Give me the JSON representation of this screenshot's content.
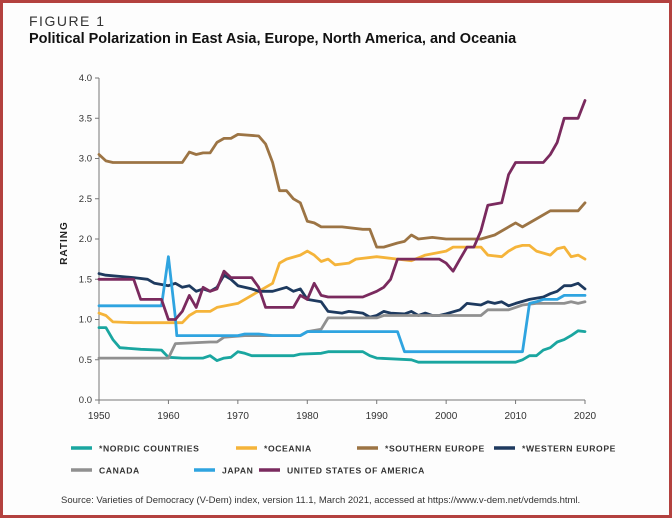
{
  "figure_label": "FIGURE 1",
  "source_text": "Source: Varieties of Democracy (V-Dem) index, version 11.1, March 2021, accessed at https://www.v-dem.net/vdemds.html.",
  "chart_data": {
    "type": "line",
    "title": "Political Polarization in East Asia, Europe, North America, and Oceania",
    "ylabel": "RATING",
    "xlabel": "",
    "xlim": [
      1950,
      2020
    ],
    "ylim": [
      0.0,
      4.0
    ],
    "xticks": [
      "1950",
      "1960",
      "1970",
      "1980",
      "1990",
      "2000",
      "2010",
      "2020"
    ],
    "yticks": [
      "0.0",
      "0.5",
      "1.0",
      "1.5",
      "2.0",
      "2.5",
      "3.0",
      "3.5",
      "4.0"
    ],
    "grid": false,
    "legend_position": "bottom",
    "series": [
      {
        "name": "*NORDIC COUNTRIES",
        "color": "#1aa6a0",
        "points": [
          [
            1950,
            0.9
          ],
          [
            1951,
            0.9
          ],
          [
            1952,
            0.75
          ],
          [
            1953,
            0.65
          ],
          [
            1956,
            0.63
          ],
          [
            1959,
            0.62
          ],
          [
            1960,
            0.53
          ],
          [
            1962,
            0.52
          ],
          [
            1965,
            0.52
          ],
          [
            1966,
            0.55
          ],
          [
            1967,
            0.49
          ],
          [
            1968,
            0.52
          ],
          [
            1969,
            0.53
          ],
          [
            1970,
            0.6
          ],
          [
            1971,
            0.58
          ],
          [
            1972,
            0.55
          ],
          [
            1978,
            0.55
          ],
          [
            1979,
            0.57
          ],
          [
            1982,
            0.58
          ],
          [
            1983,
            0.6
          ],
          [
            1988,
            0.6
          ],
          [
            1989,
            0.55
          ],
          [
            1990,
            0.52
          ],
          [
            1995,
            0.5
          ],
          [
            1996,
            0.47
          ],
          [
            2004,
            0.47
          ],
          [
            2008,
            0.47
          ],
          [
            2010,
            0.47
          ],
          [
            2011,
            0.5
          ],
          [
            2012,
            0.55
          ],
          [
            2013,
            0.55
          ],
          [
            2014,
            0.62
          ],
          [
            2015,
            0.65
          ],
          [
            2016,
            0.72
          ],
          [
            2017,
            0.75
          ],
          [
            2018,
            0.8
          ],
          [
            2019,
            0.86
          ],
          [
            2020,
            0.85
          ]
        ]
      },
      {
        "name": "*OCEANIA",
        "color": "#f5b43a",
        "points": [
          [
            1950,
            1.08
          ],
          [
            1951,
            1.05
          ],
          [
            1952,
            0.97
          ],
          [
            1955,
            0.96
          ],
          [
            1960,
            0.96
          ],
          [
            1962,
            0.96
          ],
          [
            1963,
            1.05
          ],
          [
            1964,
            1.1
          ],
          [
            1966,
            1.1
          ],
          [
            1967,
            1.15
          ],
          [
            1970,
            1.2
          ],
          [
            1971,
            1.25
          ],
          [
            1973,
            1.35
          ],
          [
            1975,
            1.45
          ],
          [
            1976,
            1.7
          ],
          [
            1977,
            1.75
          ],
          [
            1979,
            1.8
          ],
          [
            1980,
            1.85
          ],
          [
            1981,
            1.8
          ],
          [
            1982,
            1.72
          ],
          [
            1983,
            1.75
          ],
          [
            1984,
            1.68
          ],
          [
            1986,
            1.7
          ],
          [
            1987,
            1.75
          ],
          [
            1990,
            1.78
          ],
          [
            1993,
            1.75
          ],
          [
            1995,
            1.73
          ],
          [
            1997,
            1.8
          ],
          [
            2000,
            1.85
          ],
          [
            2001,
            1.9
          ],
          [
            2005,
            1.9
          ],
          [
            2006,
            1.8
          ],
          [
            2008,
            1.78
          ],
          [
            2009,
            1.85
          ],
          [
            2010,
            1.9
          ],
          [
            2011,
            1.92
          ],
          [
            2012,
            1.92
          ],
          [
            2013,
            1.85
          ],
          [
            2015,
            1.8
          ],
          [
            2016,
            1.88
          ],
          [
            2017,
            1.9
          ],
          [
            2018,
            1.78
          ],
          [
            2019,
            1.8
          ],
          [
            2020,
            1.75
          ]
        ]
      },
      {
        "name": "*SOUTHERN EUROPE",
        "color": "#9c7444",
        "points": [
          [
            1950,
            3.05
          ],
          [
            1951,
            2.97
          ],
          [
            1952,
            2.95
          ],
          [
            1956,
            2.95
          ],
          [
            1960,
            2.95
          ],
          [
            1962,
            2.95
          ],
          [
            1963,
            3.08
          ],
          [
            1964,
            3.05
          ],
          [
            1965,
            3.07
          ],
          [
            1966,
            3.07
          ],
          [
            1967,
            3.2
          ],
          [
            1968,
            3.25
          ],
          [
            1969,
            3.25
          ],
          [
            1970,
            3.3
          ],
          [
            1973,
            3.28
          ],
          [
            1974,
            3.18
          ],
          [
            1975,
            2.95
          ],
          [
            1976,
            2.6
          ],
          [
            1977,
            2.6
          ],
          [
            1978,
            2.5
          ],
          [
            1979,
            2.45
          ],
          [
            1980,
            2.22
          ],
          [
            1981,
            2.2
          ],
          [
            1982,
            2.15
          ],
          [
            1983,
            2.15
          ],
          [
            1985,
            2.15
          ],
          [
            1988,
            2.12
          ],
          [
            1989,
            2.12
          ],
          [
            1990,
            1.9
          ],
          [
            1991,
            1.9
          ],
          [
            1993,
            1.95
          ],
          [
            1994,
            1.97
          ],
          [
            1995,
            2.05
          ],
          [
            1996,
            2.0
          ],
          [
            1998,
            2.02
          ],
          [
            2000,
            2.0
          ],
          [
            2002,
            2.0
          ],
          [
            2005,
            2.0
          ],
          [
            2007,
            2.05
          ],
          [
            2010,
            2.2
          ],
          [
            2011,
            2.15
          ],
          [
            2013,
            2.25
          ],
          [
            2015,
            2.35
          ],
          [
            2019,
            2.35
          ],
          [
            2020,
            2.45
          ]
        ]
      },
      {
        "name": "*WESTERN EUROPE",
        "color": "#1e3a5f",
        "points": [
          [
            1950,
            1.57
          ],
          [
            1951,
            1.55
          ],
          [
            1955,
            1.52
          ],
          [
            1957,
            1.5
          ],
          [
            1958,
            1.45
          ],
          [
            1960,
            1.42
          ],
          [
            1961,
            1.45
          ],
          [
            1962,
            1.4
          ],
          [
            1963,
            1.42
          ],
          [
            1964,
            1.35
          ],
          [
            1965,
            1.38
          ],
          [
            1966,
            1.35
          ],
          [
            1967,
            1.4
          ],
          [
            1968,
            1.55
          ],
          [
            1969,
            1.5
          ],
          [
            1970,
            1.42
          ],
          [
            1972,
            1.38
          ],
          [
            1973,
            1.35
          ],
          [
            1975,
            1.35
          ],
          [
            1977,
            1.4
          ],
          [
            1978,
            1.35
          ],
          [
            1979,
            1.38
          ],
          [
            1980,
            1.25
          ],
          [
            1982,
            1.22
          ],
          [
            1983,
            1.1
          ],
          [
            1985,
            1.08
          ],
          [
            1986,
            1.1
          ],
          [
            1988,
            1.08
          ],
          [
            1989,
            1.03
          ],
          [
            1990,
            1.05
          ],
          [
            1991,
            1.1
          ],
          [
            1992,
            1.08
          ],
          [
            1994,
            1.07
          ],
          [
            1995,
            1.1
          ],
          [
            1996,
            1.05
          ],
          [
            1997,
            1.08
          ],
          [
            1998,
            1.05
          ],
          [
            1999,
            1.05
          ],
          [
            2000,
            1.07
          ],
          [
            2002,
            1.12
          ],
          [
            2003,
            1.2
          ],
          [
            2005,
            1.18
          ],
          [
            2006,
            1.22
          ],
          [
            2007,
            1.2
          ],
          [
            2008,
            1.22
          ],
          [
            2009,
            1.17
          ],
          [
            2010,
            1.2
          ],
          [
            2012,
            1.25
          ],
          [
            2014,
            1.28
          ],
          [
            2015,
            1.32
          ],
          [
            2016,
            1.35
          ],
          [
            2017,
            1.42
          ],
          [
            2018,
            1.42
          ],
          [
            2019,
            1.45
          ],
          [
            2020,
            1.38
          ]
        ]
      },
      {
        "name": "CANADA",
        "color": "#909090",
        "points": [
          [
            1950,
            0.52
          ],
          [
            1960,
            0.52
          ],
          [
            1961,
            0.7
          ],
          [
            1966,
            0.72
          ],
          [
            1967,
            0.72
          ],
          [
            1968,
            0.78
          ],
          [
            1971,
            0.8
          ],
          [
            1979,
            0.8
          ],
          [
            1980,
            0.85
          ],
          [
            1982,
            0.88
          ],
          [
            1983,
            1.02
          ],
          [
            1990,
            1.02
          ],
          [
            1991,
            1.05
          ],
          [
            2005,
            1.05
          ],
          [
            2006,
            1.12
          ],
          [
            2009,
            1.12
          ],
          [
            2010,
            1.15
          ],
          [
            2011,
            1.18
          ],
          [
            2013,
            1.2
          ],
          [
            2017,
            1.2
          ],
          [
            2018,
            1.22
          ],
          [
            2019,
            1.2
          ],
          [
            2020,
            1.22
          ]
        ]
      },
      {
        "name": "JAPAN",
        "color": "#2fa4e0",
        "points": [
          [
            1950,
            1.17
          ],
          [
            1959,
            1.17
          ],
          [
            1960,
            1.78
          ],
          [
            1961,
            1.02
          ],
          [
            1961.2,
            0.8
          ],
          [
            1969,
            0.8
          ],
          [
            1970,
            0.8
          ],
          [
            1971,
            0.82
          ],
          [
            1973,
            0.82
          ],
          [
            1975,
            0.8
          ],
          [
            1976,
            0.8
          ],
          [
            1979,
            0.8
          ],
          [
            1980,
            0.85
          ],
          [
            1990,
            0.85
          ],
          [
            1993,
            0.85
          ],
          [
            1994,
            0.6
          ],
          [
            2000,
            0.6
          ],
          [
            2010,
            0.6
          ],
          [
            2011,
            0.6
          ],
          [
            2012,
            1.2
          ],
          [
            2013,
            1.22
          ],
          [
            2014,
            1.25
          ],
          [
            2016,
            1.25
          ],
          [
            2017,
            1.3
          ],
          [
            2020,
            1.3
          ]
        ]
      },
      {
        "name": "UNITED STATES OF AMERICA",
        "color": "#7a2a5e",
        "points": [
          [
            1950,
            1.5
          ],
          [
            1951,
            1.5
          ],
          [
            1955,
            1.5
          ],
          [
            1956,
            1.25
          ],
          [
            1959,
            1.25
          ],
          [
            1960,
            1.0
          ],
          [
            1961,
            1.0
          ],
          [
            1962,
            1.1
          ],
          [
            1963,
            1.3
          ],
          [
            1964,
            1.15
          ],
          [
            1965,
            1.4
          ],
          [
            1966,
            1.35
          ],
          [
            1967,
            1.38
          ],
          [
            1968,
            1.6
          ],
          [
            1969,
            1.52
          ],
          [
            1970,
            1.52
          ],
          [
            1971,
            1.52
          ],
          [
            1972,
            1.52
          ],
          [
            1973,
            1.4
          ],
          [
            1974,
            1.15
          ],
          [
            1978,
            1.15
          ],
          [
            1979,
            1.3
          ],
          [
            1980,
            1.25
          ],
          [
            1981,
            1.45
          ],
          [
            1982,
            1.3
          ],
          [
            1983,
            1.28
          ],
          [
            1985,
            1.28
          ],
          [
            1986,
            1.28
          ],
          [
            1988,
            1.28
          ],
          [
            1990,
            1.35
          ],
          [
            1991,
            1.4
          ],
          [
            1992,
            1.5
          ],
          [
            1993,
            1.75
          ],
          [
            1996,
            1.75
          ],
          [
            1998,
            1.75
          ],
          [
            1999,
            1.75
          ],
          [
            2000,
            1.7
          ],
          [
            2001,
            1.6
          ],
          [
            2002,
            1.75
          ],
          [
            2003,
            1.9
          ],
          [
            2004,
            1.9
          ],
          [
            2005,
            2.1
          ],
          [
            2006,
            2.42
          ],
          [
            2008,
            2.45
          ],
          [
            2009,
            2.8
          ],
          [
            2010,
            2.95
          ],
          [
            2011,
            2.95
          ],
          [
            2014,
            2.95
          ],
          [
            2015,
            3.05
          ],
          [
            2016,
            3.2
          ],
          [
            2017,
            3.5
          ],
          [
            2019,
            3.5
          ],
          [
            2020,
            3.72
          ]
        ]
      }
    ]
  }
}
